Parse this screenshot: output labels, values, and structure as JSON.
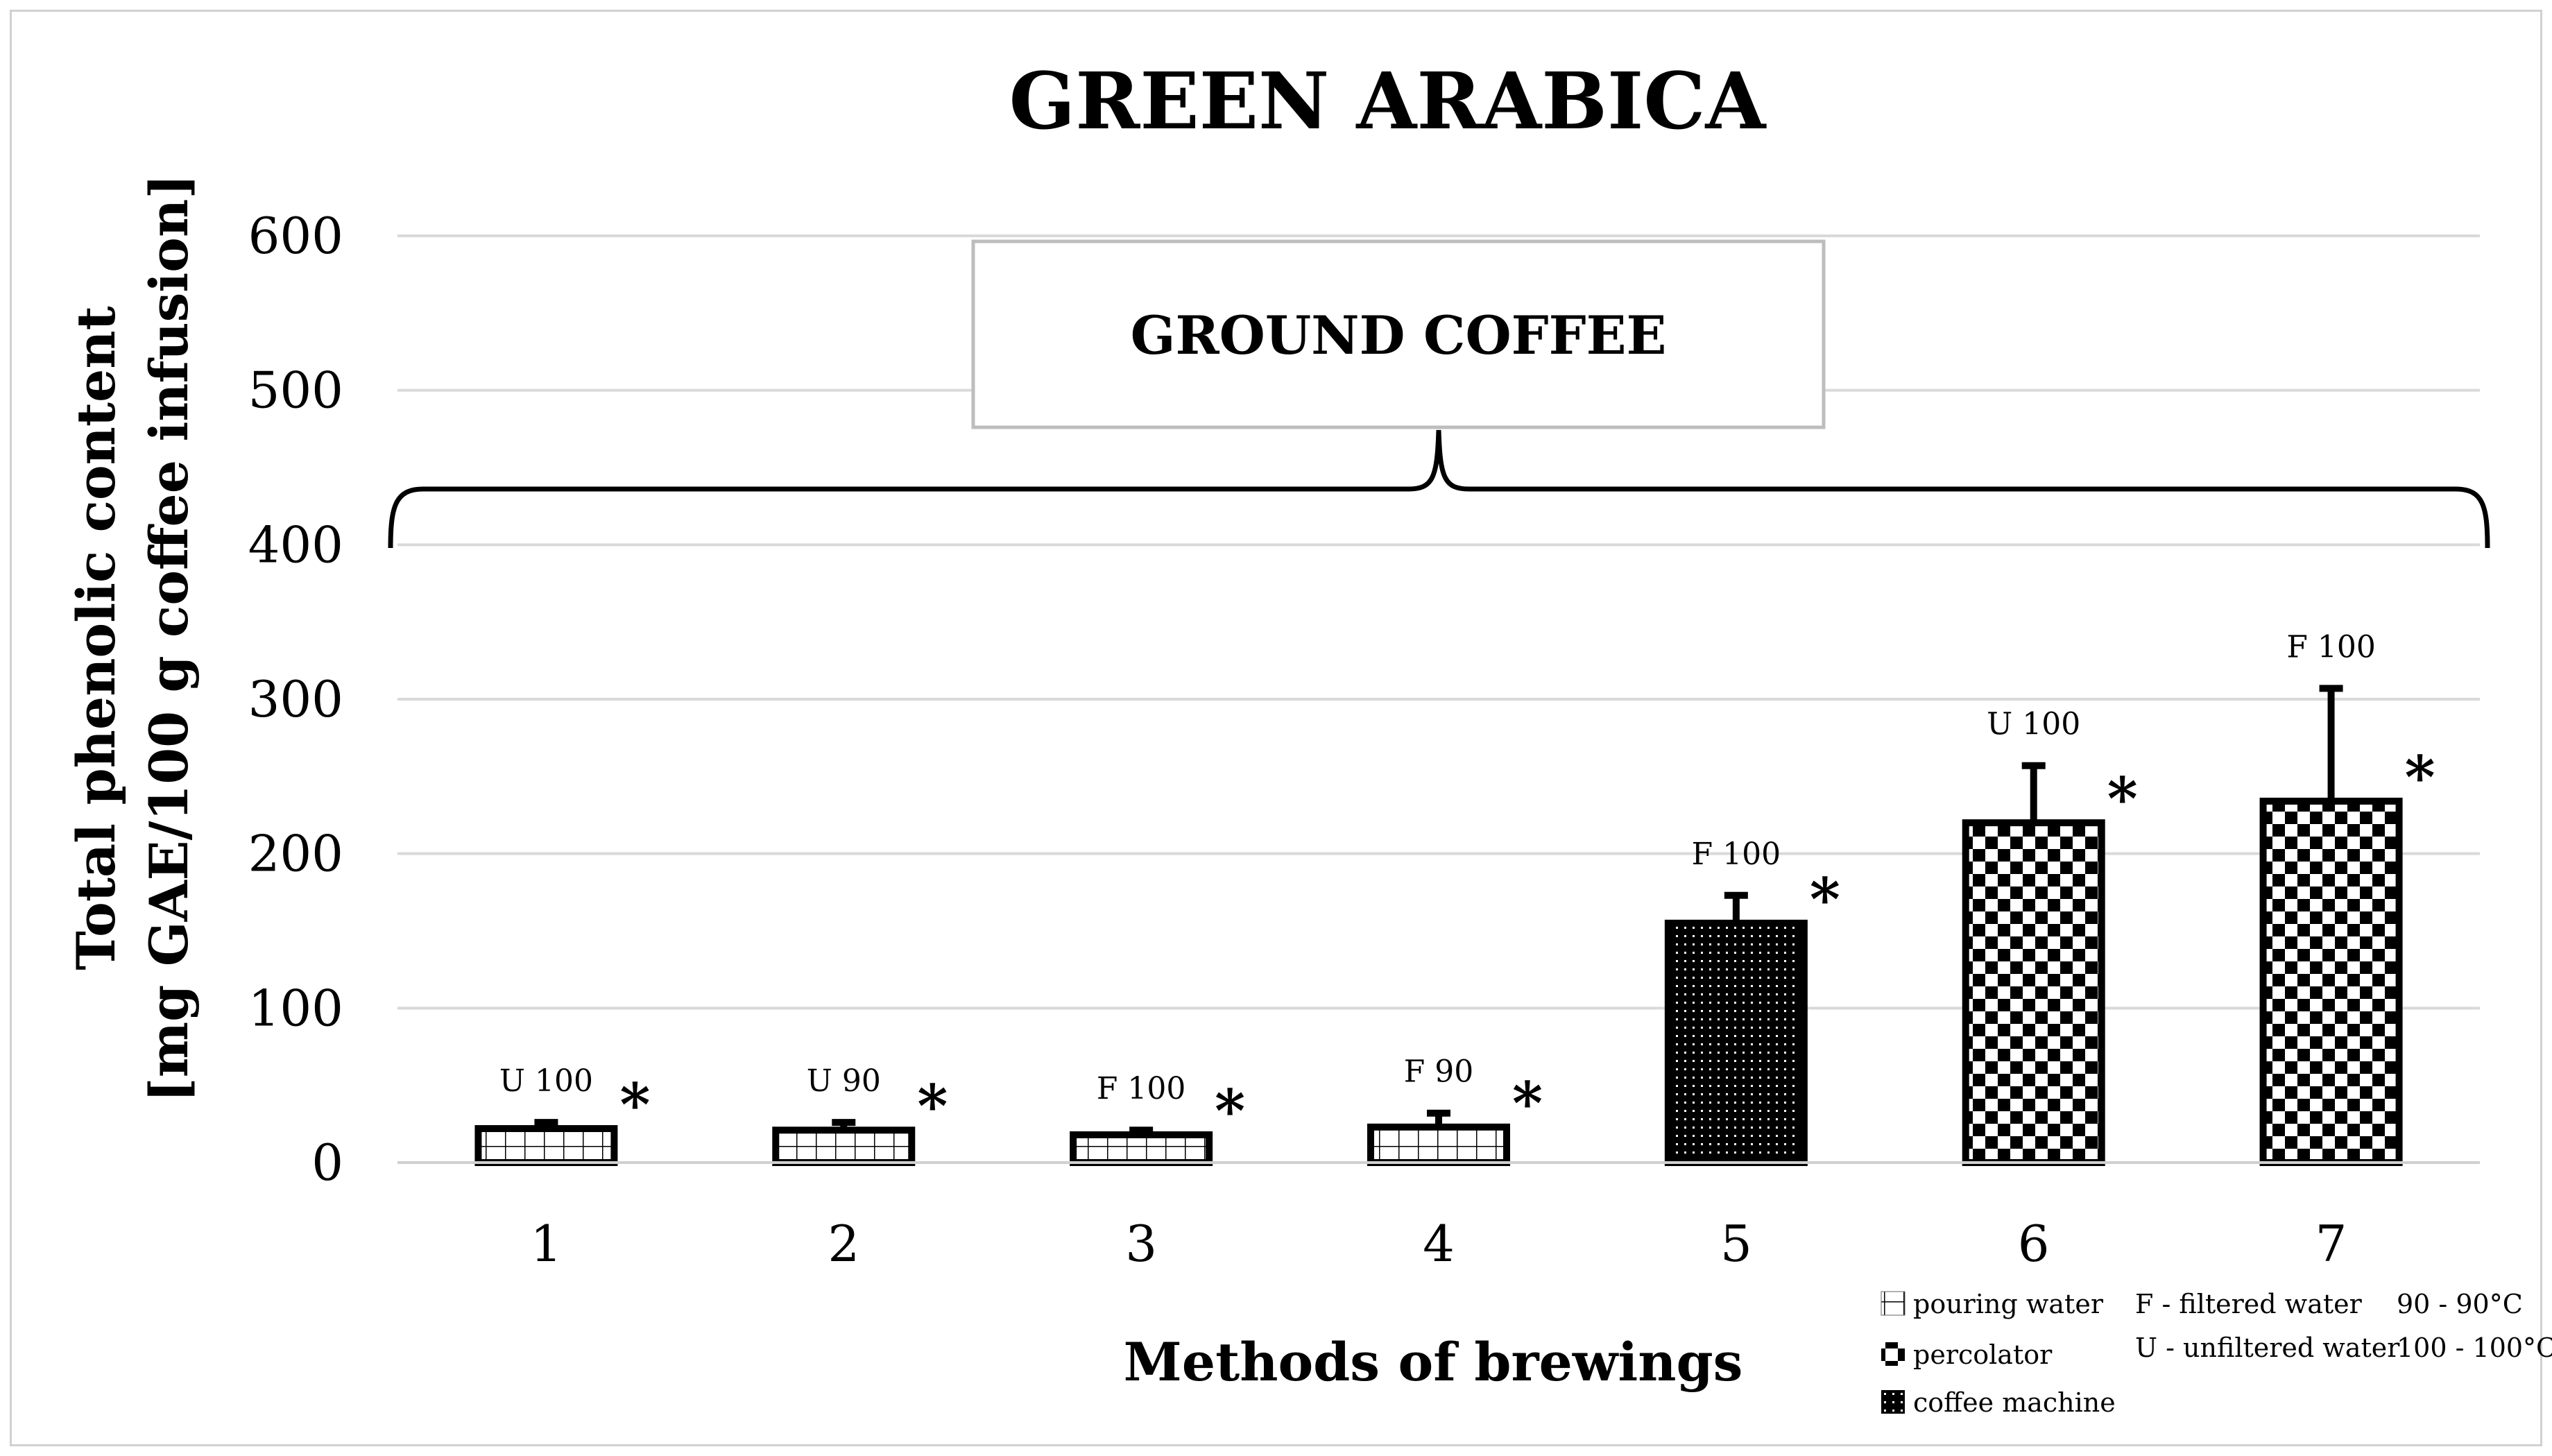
{
  "chart_data": {
    "type": "bar",
    "title": "GREEN ARABICA",
    "xlabel": "Methods of brewings",
    "ylabel_line1": "Total phenolic content",
    "ylabel_line2": "[mg GAE/100 g coffee infusion]",
    "ylim": [
      0,
      600
    ],
    "yticks": [
      "0",
      "100",
      "200",
      "300",
      "400",
      "500",
      "600"
    ],
    "grid": true,
    "group_label": "GROUND COFFEE",
    "categories": [
      "1",
      "2",
      "3",
      "4",
      "5",
      "6",
      "7"
    ],
    "values": [
      22,
      21,
      18,
      23,
      155,
      220,
      234
    ],
    "errors": [
      4,
      5,
      3,
      9,
      18,
      37,
      73
    ],
    "bar_labels": [
      "U 100",
      "U 90",
      "F 100",
      "F 90",
      "F 100",
      "U 100",
      "F 100"
    ],
    "significance": [
      "*",
      "*",
      "*",
      "*",
      "*",
      "*",
      "*"
    ],
    "methods": [
      "pouring water",
      "pouring water",
      "pouring water",
      "pouring water",
      "coffee machine",
      "percolator",
      "percolator"
    ],
    "legend": {
      "methods": [
        "pouring water",
        "percolator",
        "coffee machine"
      ],
      "water": [
        "F - filtered water",
        "U - unfiltered water"
      ],
      "temperature": [
        "90 - 90°C",
        "100 - 100°C"
      ]
    }
  }
}
